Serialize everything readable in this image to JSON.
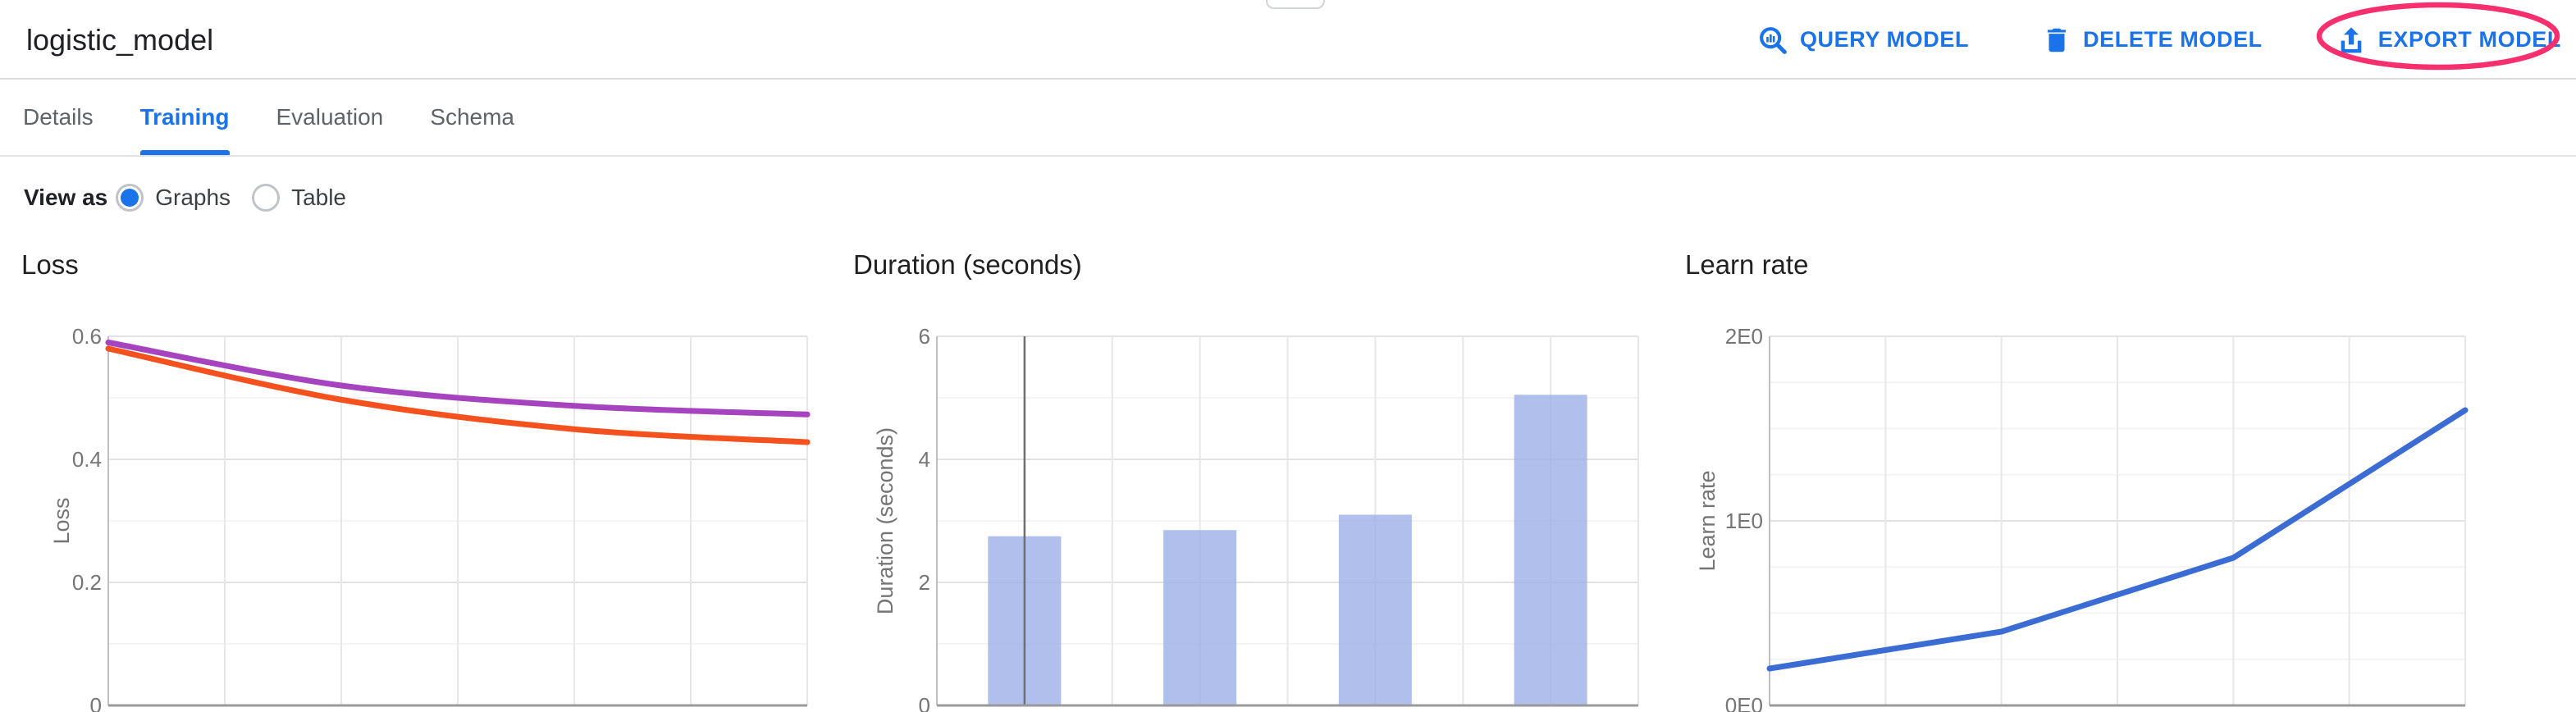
{
  "header": {
    "title": "logistic_model",
    "actions": [
      {
        "label": "QUERY MODEL",
        "icon": "query-magnifier-chart-icon"
      },
      {
        "label": "DELETE MODEL",
        "icon": "trash-icon"
      },
      {
        "label": "EXPORT MODEL",
        "icon": "upload-icon",
        "annotation": "pink-ellipse-highlight"
      }
    ]
  },
  "tabs": {
    "items": [
      {
        "label": "Details",
        "active": false
      },
      {
        "label": "Training",
        "active": true
      },
      {
        "label": "Evaluation",
        "active": false
      },
      {
        "label": "Schema",
        "active": false
      }
    ]
  },
  "view_as": {
    "label": "View as",
    "options": [
      {
        "label": "Graphs",
        "selected": true
      },
      {
        "label": "Table",
        "selected": false
      }
    ]
  },
  "colors": {
    "accent_blue": "#1a73e8",
    "annotation_pink": "#f72f6e",
    "loss_purple": "#a643bf",
    "loss_orange": "#f4511e",
    "duration_bar": "#9fb1e6",
    "learn_rate_blue": "#3b6cd4",
    "tick_gray": "#757575",
    "grid_major": "#e2e2e2",
    "grid_minor": "#f4f4f4",
    "axis_baseline": "#9a9a9a",
    "dark_marker_line": "#6f6f6f"
  },
  "chart_data": [
    {
      "type": "line",
      "title": "Loss",
      "ylabel": "Loss",
      "x": [
        0,
        1,
        2,
        3
      ],
      "series": [
        {
          "name": "purple-line",
          "color": "#a643bf",
          "values": [
            0.59,
            0.52,
            0.487,
            0.473
          ]
        },
        {
          "name": "orange-line",
          "color": "#f4511e",
          "values": [
            0.58,
            0.497,
            0.449,
            0.428
          ]
        }
      ],
      "smooth": true,
      "ylim": [
        0,
        0.6
      ],
      "yticks": [
        {
          "label": "0",
          "value": 0
        },
        {
          "label": "0.2",
          "value": 0.2
        },
        {
          "label": "0.4",
          "value": 0.4
        },
        {
          "label": "0.6",
          "value": 0.6
        }
      ],
      "y_minor_step": 0.1,
      "x_divisions": 6,
      "grid": true,
      "legend": "none"
    },
    {
      "type": "bar",
      "title": "Duration (seconds)",
      "ylabel": "Duration (seconds)",
      "x": [
        0,
        1,
        2,
        3
      ],
      "values": [
        2.75,
        2.85,
        3.1,
        5.05
      ],
      "bar_color": "#9fb1e6",
      "ylim": [
        0,
        6
      ],
      "yticks": [
        {
          "label": "0",
          "value": 0
        },
        {
          "label": "2",
          "value": 2
        },
        {
          "label": "4",
          "value": 4
        },
        {
          "label": "6",
          "value": 6
        }
      ],
      "y_minor_step": 1,
      "x_divisions": 8,
      "dark_division": 1,
      "grid": true,
      "legend": "none"
    },
    {
      "type": "line",
      "title": "Learn rate",
      "ylabel": "Learn rate",
      "x": [
        0,
        1,
        2,
        3
      ],
      "series": [
        {
          "name": "learn-rate-line",
          "color": "#3b6cd4",
          "values": [
            0.2,
            0.4,
            0.8,
            1.6
          ]
        }
      ],
      "smooth": false,
      "ylim": [
        0,
        2
      ],
      "yticks": [
        {
          "label": "0E0",
          "value": 0
        },
        {
          "label": "1E0",
          "value": 1
        },
        {
          "label": "2E0",
          "value": 2
        }
      ],
      "y_minor_step": 0.25,
      "x_divisions": 6,
      "grid": true,
      "legend": "none"
    }
  ]
}
